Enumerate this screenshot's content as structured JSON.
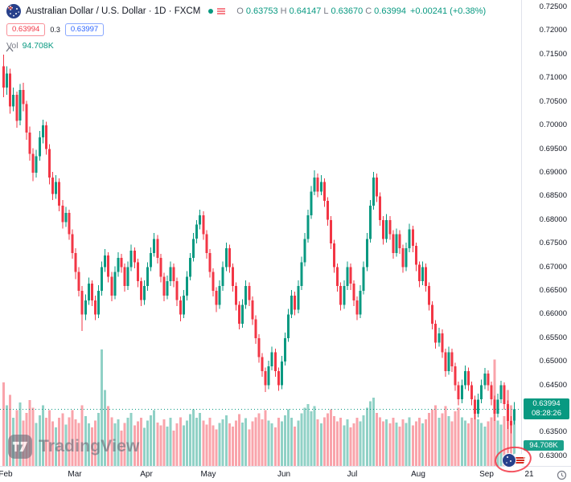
{
  "header": {
    "title": "Australian Dollar / U.S. Dollar · 1D · FXCM",
    "ohlc": {
      "o_label": "O",
      "o_value": "0.63753",
      "h_label": "H",
      "h_value": "0.64147",
      "l_label": "L",
      "l_value": "0.63670",
      "c_label": "C",
      "c_value": "0.63994",
      "change": "+0.00241 (+0.38%)"
    },
    "bid": "0.63994",
    "spread": "0.3",
    "ask": "0.63997",
    "vol_label": "Vol",
    "vol_value": "94.708K"
  },
  "price_scale": {
    "last_price": "0.63994",
    "countdown": "08:28:26",
    "volume_badge": "94.708K"
  },
  "watermark": {
    "brand": "TradingView"
  },
  "colors": {
    "up": "#089981",
    "down": "#f23645",
    "bid": "#f23645",
    "ask": "#2962ff",
    "axis_text": "#131722",
    "muted": "#787b86",
    "grid": "#e0e3eb"
  },
  "chart_data": {
    "type": "candlestick",
    "title": "Australian Dollar / U.S. Dollar",
    "timeframe": "1D",
    "provider": "FXCM",
    "last_price": 0.63994,
    "ylim": [
      0.63,
      0.725
    ],
    "y_ticks": [
      "0.72500",
      "0.72000",
      "0.71500",
      "0.71000",
      "0.70500",
      "0.70000",
      "0.69500",
      "0.69000",
      "0.68500",
      "0.68000",
      "0.67500",
      "0.67000",
      "0.66500",
      "0.66000",
      "0.65500",
      "0.65000",
      "0.64500",
      "0.64000",
      "0.63500",
      "0.63000"
    ],
    "x_ticks": [
      {
        "label": "Feb",
        "index": 1
      },
      {
        "label": "Mar",
        "index": 22
      },
      {
        "label": "Apr",
        "index": 44
      },
      {
        "label": "May",
        "index": 63
      },
      {
        "label": "Jun",
        "index": 86
      },
      {
        "label": "Jul",
        "index": 107
      },
      {
        "label": "Aug",
        "index": 127
      },
      {
        "label": "Sep",
        "index": 148
      },
      {
        "label": "21",
        "index": 161
      }
    ],
    "candles": [
      [
        0.7125,
        0.715,
        0.706,
        0.708
      ],
      [
        0.708,
        0.7125,
        0.7065,
        0.711
      ],
      [
        0.711,
        0.712,
        0.7025,
        0.704
      ],
      [
        0.704,
        0.708,
        0.703,
        0.7065
      ],
      [
        0.7065,
        0.7072,
        0.6995,
        0.701
      ],
      [
        0.701,
        0.7088,
        0.7,
        0.7075
      ],
      [
        0.7075,
        0.709,
        0.703,
        0.7045
      ],
      [
        0.7045,
        0.7052,
        0.697,
        0.6985
      ],
      [
        0.6985,
        0.6998,
        0.6925,
        0.694
      ],
      [
        0.694,
        0.6952,
        0.6882,
        0.69
      ],
      [
        0.69,
        0.6948,
        0.689,
        0.6935
      ],
      [
        0.6935,
        0.6988,
        0.6925,
        0.6975
      ],
      [
        0.6975,
        0.7012,
        0.6962,
        0.7
      ],
      [
        0.7,
        0.7008,
        0.6938,
        0.695
      ],
      [
        0.695,
        0.696,
        0.6875,
        0.689
      ],
      [
        0.689,
        0.6902,
        0.6842,
        0.6855
      ],
      [
        0.6855,
        0.6895,
        0.6845,
        0.688
      ],
      [
        0.688,
        0.6888,
        0.6818,
        0.683
      ],
      [
        0.683,
        0.6842,
        0.6782,
        0.6795
      ],
      [
        0.6795,
        0.6828,
        0.6785,
        0.6815
      ],
      [
        0.6815,
        0.6822,
        0.6758,
        0.677
      ],
      [
        0.677,
        0.678,
        0.6718,
        0.673
      ],
      [
        0.673,
        0.674,
        0.6675,
        0.669
      ],
      [
        0.669,
        0.67,
        0.6638,
        0.665
      ],
      [
        0.665,
        0.666,
        0.6565,
        0.66
      ],
      [
        0.66,
        0.6642,
        0.6588,
        0.663
      ],
      [
        0.663,
        0.6678,
        0.662,
        0.6665
      ],
      [
        0.6665,
        0.6672,
        0.6618,
        0.663
      ],
      [
        0.663,
        0.664,
        0.6588,
        0.66
      ],
      [
        0.66,
        0.6662,
        0.6592,
        0.665
      ],
      [
        0.665,
        0.6712,
        0.664,
        0.67
      ],
      [
        0.67,
        0.6738,
        0.669,
        0.6725
      ],
      [
        0.6725,
        0.6732,
        0.6668,
        0.668
      ],
      [
        0.668,
        0.669,
        0.6628,
        0.664
      ],
      [
        0.664,
        0.6702,
        0.6632,
        0.669
      ],
      [
        0.669,
        0.6732,
        0.668,
        0.672
      ],
      [
        0.672,
        0.6728,
        0.6688,
        0.67
      ],
      [
        0.67,
        0.6708,
        0.6648,
        0.666
      ],
      [
        0.666,
        0.6712,
        0.6652,
        0.67
      ],
      [
        0.67,
        0.6748,
        0.6692,
        0.6735
      ],
      [
        0.6735,
        0.6742,
        0.6698,
        0.671
      ],
      [
        0.671,
        0.6718,
        0.6658,
        0.667
      ],
      [
        0.667,
        0.6678,
        0.6618,
        0.663
      ],
      [
        0.663,
        0.6672,
        0.662,
        0.666
      ],
      [
        0.666,
        0.671,
        0.665,
        0.67
      ],
      [
        0.67,
        0.6742,
        0.6692,
        0.673
      ],
      [
        0.673,
        0.6772,
        0.6722,
        0.676
      ],
      [
        0.676,
        0.6768,
        0.6708,
        0.672
      ],
      [
        0.672,
        0.6728,
        0.6668,
        0.668
      ],
      [
        0.668,
        0.6688,
        0.6628,
        0.664
      ],
      [
        0.664,
        0.6682,
        0.6632,
        0.667
      ],
      [
        0.667,
        0.6712,
        0.666,
        0.67
      ],
      [
        0.67,
        0.6708,
        0.6658,
        0.667
      ],
      [
        0.667,
        0.6678,
        0.6618,
        0.663
      ],
      [
        0.663,
        0.6638,
        0.6585,
        0.66
      ],
      [
        0.66,
        0.6652,
        0.6592,
        0.664
      ],
      [
        0.664,
        0.6692,
        0.663,
        0.668
      ],
      [
        0.668,
        0.673,
        0.6672,
        0.672
      ],
      [
        0.672,
        0.6772,
        0.6712,
        0.676
      ],
      [
        0.676,
        0.68,
        0.675,
        0.679
      ],
      [
        0.679,
        0.6822,
        0.678,
        0.681
      ],
      [
        0.681,
        0.6818,
        0.6758,
        0.677
      ],
      [
        0.677,
        0.6778,
        0.6718,
        0.673
      ],
      [
        0.673,
        0.6738,
        0.6678,
        0.669
      ],
      [
        0.669,
        0.6698,
        0.6638,
        0.665
      ],
      [
        0.665,
        0.6658,
        0.6605,
        0.662
      ],
      [
        0.662,
        0.6672,
        0.6612,
        0.666
      ],
      [
        0.666,
        0.6712,
        0.665,
        0.67
      ],
      [
        0.67,
        0.6752,
        0.6692,
        0.674
      ],
      [
        0.674,
        0.6748,
        0.6688,
        0.67
      ],
      [
        0.67,
        0.6708,
        0.6648,
        0.666
      ],
      [
        0.666,
        0.6668,
        0.6608,
        0.662
      ],
      [
        0.662,
        0.6628,
        0.6568,
        0.658
      ],
      [
        0.658,
        0.6632,
        0.6572,
        0.662
      ],
      [
        0.662,
        0.6672,
        0.6612,
        0.666
      ],
      [
        0.666,
        0.6668,
        0.6618,
        0.663
      ],
      [
        0.663,
        0.6638,
        0.6578,
        0.659
      ],
      [
        0.659,
        0.6598,
        0.6538,
        0.655
      ],
      [
        0.655,
        0.6558,
        0.6498,
        0.651
      ],
      [
        0.651,
        0.6518,
        0.6468,
        0.648
      ],
      [
        0.648,
        0.6488,
        0.6436,
        0.645
      ],
      [
        0.645,
        0.6502,
        0.6442,
        0.649
      ],
      [
        0.649,
        0.6532,
        0.6482,
        0.652
      ],
      [
        0.652,
        0.6528,
        0.6468,
        0.648
      ],
      [
        0.648,
        0.6488,
        0.6438,
        0.645
      ],
      [
        0.645,
        0.6512,
        0.6442,
        0.65
      ],
      [
        0.65,
        0.6562,
        0.6492,
        0.655
      ],
      [
        0.655,
        0.6612,
        0.6542,
        0.66
      ],
      [
        0.66,
        0.6652,
        0.6592,
        0.664
      ],
      [
        0.664,
        0.6648,
        0.6598,
        0.661
      ],
      [
        0.661,
        0.6672,
        0.6602,
        0.666
      ],
      [
        0.666,
        0.6722,
        0.6652,
        0.671
      ],
      [
        0.671,
        0.6772,
        0.6702,
        0.676
      ],
      [
        0.676,
        0.6822,
        0.6752,
        0.681
      ],
      [
        0.681,
        0.6872,
        0.6802,
        0.686
      ],
      [
        0.686,
        0.6905,
        0.6852,
        0.689
      ],
      [
        0.689,
        0.6898,
        0.6848,
        0.686
      ],
      [
        0.686,
        0.6895,
        0.6852,
        0.688
      ],
      [
        0.688,
        0.6888,
        0.6828,
        0.684
      ],
      [
        0.684,
        0.6848,
        0.6788,
        0.68
      ],
      [
        0.68,
        0.6808,
        0.6738,
        0.675
      ],
      [
        0.675,
        0.6758,
        0.6688,
        0.67
      ],
      [
        0.67,
        0.6708,
        0.6648,
        0.666
      ],
      [
        0.666,
        0.6668,
        0.6608,
        0.662
      ],
      [
        0.662,
        0.6672,
        0.6612,
        0.666
      ],
      [
        0.666,
        0.6712,
        0.6652,
        0.67
      ],
      [
        0.67,
        0.6708,
        0.6652,
        0.6665
      ],
      [
        0.6665,
        0.6672,
        0.6618,
        0.663
      ],
      [
        0.663,
        0.6638,
        0.6588,
        0.66
      ],
      [
        0.66,
        0.6662,
        0.6592,
        0.665
      ],
      [
        0.665,
        0.6712,
        0.6642,
        0.67
      ],
      [
        0.67,
        0.6772,
        0.6692,
        0.676
      ],
      [
        0.676,
        0.6842,
        0.6752,
        0.683
      ],
      [
        0.683,
        0.6902,
        0.6822,
        0.689
      ],
      [
        0.689,
        0.6898,
        0.6838,
        0.685
      ],
      [
        0.685,
        0.6858,
        0.6788,
        0.68
      ],
      [
        0.68,
        0.6808,
        0.6748,
        0.676
      ],
      [
        0.676,
        0.6812,
        0.6752,
        0.68
      ],
      [
        0.68,
        0.6808,
        0.6758,
        0.677
      ],
      [
        0.677,
        0.6778,
        0.6718,
        0.673
      ],
      [
        0.673,
        0.6782,
        0.6722,
        0.677
      ],
      [
        0.677,
        0.6778,
        0.6728,
        0.674
      ],
      [
        0.674,
        0.6748,
        0.6688,
        0.67
      ],
      [
        0.67,
        0.6752,
        0.6692,
        0.674
      ],
      [
        0.674,
        0.6792,
        0.6732,
        0.678
      ],
      [
        0.678,
        0.6788,
        0.6732,
        0.6745
      ],
      [
        0.6745,
        0.6752,
        0.6692,
        0.6705
      ],
      [
        0.6705,
        0.6712,
        0.6658,
        0.667
      ],
      [
        0.667,
        0.6712,
        0.6662,
        0.67
      ],
      [
        0.67,
        0.6708,
        0.6648,
        0.666
      ],
      [
        0.666,
        0.6668,
        0.6608,
        0.662
      ],
      [
        0.662,
        0.6628,
        0.6568,
        0.658
      ],
      [
        0.658,
        0.6588,
        0.6528,
        0.654
      ],
      [
        0.654,
        0.6572,
        0.6532,
        0.656
      ],
      [
        0.656,
        0.6568,
        0.6508,
        0.652
      ],
      [
        0.652,
        0.6528,
        0.6468,
        0.648
      ],
      [
        0.648,
        0.6532,
        0.6472,
        0.652
      ],
      [
        0.652,
        0.6528,
        0.6478,
        0.649
      ],
      [
        0.649,
        0.6498,
        0.6438,
        0.645
      ],
      [
        0.645,
        0.6458,
        0.6408,
        0.642
      ],
      [
        0.642,
        0.6462,
        0.6412,
        0.645
      ],
      [
        0.645,
        0.6492,
        0.6442,
        0.648
      ],
      [
        0.648,
        0.6488,
        0.6438,
        0.645
      ],
      [
        0.645,
        0.6458,
        0.6408,
        0.642
      ],
      [
        0.642,
        0.6428,
        0.6378,
        0.639
      ],
      [
        0.639,
        0.6432,
        0.6382,
        0.642
      ],
      [
        0.642,
        0.6462,
        0.6412,
        0.645
      ],
      [
        0.645,
        0.6487,
        0.6442,
        0.6475
      ],
      [
        0.6475,
        0.6482,
        0.6438,
        0.645
      ],
      [
        0.645,
        0.6458,
        0.6408,
        0.642
      ],
      [
        0.642,
        0.6428,
        0.6375,
        0.639
      ],
      [
        0.639,
        0.6432,
        0.6382,
        0.642
      ],
      [
        0.642,
        0.646,
        0.6412,
        0.645
      ],
      [
        0.645,
        0.6456,
        0.6398,
        0.641
      ],
      [
        0.641,
        0.6418,
        0.6358,
        0.6375
      ],
      [
        0.6375,
        0.6385,
        0.6348,
        0.6365
      ],
      [
        0.63753,
        0.64147,
        0.6367,
        0.63994
      ]
    ],
    "volumes_k": [
      165,
      120,
      140,
      95,
      110,
      125,
      90,
      105,
      130,
      115,
      85,
      100,
      120,
      95,
      110,
      88,
      76,
      95,
      104,
      82,
      96,
      110,
      92,
      85,
      120,
      98,
      84,
      76,
      90,
      105,
      230,
      150,
      118,
      96,
      84,
      92,
      70,
      85,
      95,
      105,
      80,
      88,
      95,
      75,
      90,
      100,
      110,
      86,
      80,
      92,
      78,
      95,
      70,
      84,
      96,
      80,
      90,
      102,
      112,
      95,
      105,
      90,
      82,
      95,
      80,
      72,
      85,
      92,
      100,
      84,
      78,
      90,
      102,
      86,
      94,
      72,
      88,
      96,
      104,
      92,
      110,
      90,
      84,
      76,
      95,
      88,
      100,
      112,
      95,
      78,
      90,
      104,
      115,
      122,
      108,
      118,
      92,
      84,
      96,
      104,
      112,
      98,
      88,
      95,
      80,
      92,
      76,
      84,
      95,
      88,
      100,
      115,
      128,
      135,
      105,
      96,
      88,
      92,
      84,
      95,
      86,
      78,
      92,
      85,
      96,
      80,
      88,
      95,
      84,
      92,
      105,
      112,
      120,
      95,
      104,
      118,
      98,
      88,
      108,
      115,
      96,
      90,
      84,
      95,
      110,
      92,
      85,
      78,
      88,
      96,
      210,
      90,
      82,
      98,
      150,
      120,
      94.708
    ]
  }
}
